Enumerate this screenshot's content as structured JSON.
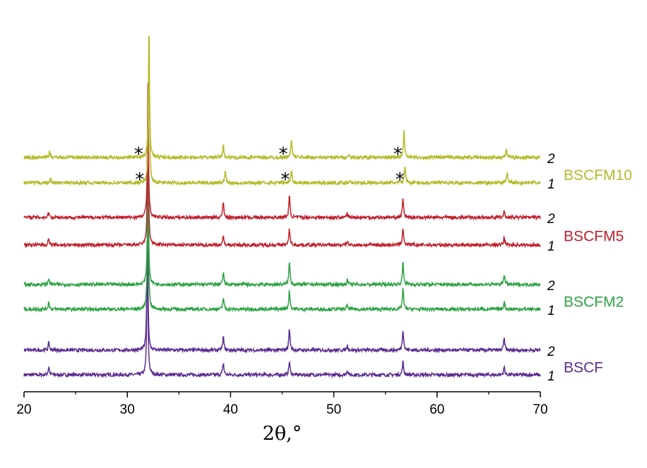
{
  "chart_data": {
    "type": "line",
    "title": "",
    "xlabel": "2θ,°",
    "ylabel": "",
    "xlim": [
      20,
      70
    ],
    "xticks": [
      20,
      30,
      40,
      50,
      60,
      70
    ],
    "xtick_labels": [
      "20",
      "30",
      "40",
      "50",
      "60",
      "70"
    ],
    "yaxis_visible": false,
    "grid": false,
    "samples": [
      {
        "name": "BSCF",
        "color": "#5b2d91",
        "curves": [
          {
            "label": "1",
            "peaks": [
              [
                22.4,
                0.6
              ],
              [
                31.95,
                10
              ],
              [
                39.3,
                0.9
              ],
              [
                45.7,
                1.0
              ],
              [
                51.3,
                0.35
              ],
              [
                56.7,
                1.0
              ],
              [
                66.5,
                0.6
              ]
            ]
          },
          {
            "label": "2",
            "peaks": [
              [
                22.4,
                0.55
              ],
              [
                31.95,
                10
              ],
              [
                39.3,
                1.0
              ],
              [
                45.7,
                1.6
              ],
              [
                51.3,
                0.35
              ],
              [
                56.7,
                1.6
              ],
              [
                66.5,
                0.9
              ]
            ]
          }
        ]
      },
      {
        "name": "BSCFM2",
        "color": "#2ca243",
        "curves": [
          {
            "label": "1",
            "peaks": [
              [
                22.4,
                0.55
              ],
              [
                32.0,
                10
              ],
              [
                39.3,
                0.85
              ],
              [
                45.7,
                1.4
              ],
              [
                51.3,
                0.3
              ],
              [
                56.7,
                1.6
              ],
              [
                66.5,
                0.55
              ]
            ]
          },
          {
            "label": "2",
            "peaks": [
              [
                22.4,
                0.45
              ],
              [
                32.0,
                10
              ],
              [
                39.3,
                0.9
              ],
              [
                45.7,
                1.7
              ],
              [
                51.3,
                0.35
              ],
              [
                56.7,
                1.7
              ],
              [
                66.5,
                0.8
              ]
            ]
          }
        ]
      },
      {
        "name": "BSCFM5",
        "color": "#c0202b",
        "curves": [
          {
            "label": "1",
            "peaks": [
              [
                22.4,
                0.5
              ],
              [
                32.0,
                10
              ],
              [
                39.3,
                0.6
              ],
              [
                45.7,
                1.2
              ],
              [
                51.3,
                0.25
              ],
              [
                56.7,
                1.3
              ],
              [
                66.5,
                0.6
              ]
            ]
          },
          {
            "label": "2",
            "peaks": [
              [
                22.4,
                0.4
              ],
              [
                32.0,
                10
              ],
              [
                39.3,
                1.2
              ],
              [
                45.7,
                1.6
              ],
              [
                51.3,
                0.3
              ],
              [
                56.7,
                1.4
              ],
              [
                66.5,
                0.45
              ]
            ]
          }
        ]
      },
      {
        "name": "BSCFM10",
        "color": "#b4bb2a",
        "curves": [
          {
            "label": "1",
            "peaks": [
              [
                22.6,
                0.3
              ],
              [
                32.1,
                10
              ],
              [
                39.5,
                0.9
              ],
              [
                45.9,
                1.0
              ],
              [
                51.6,
                0.2
              ],
              [
                56.9,
                1.3
              ],
              [
                66.8,
                0.75
              ]
            ]
          },
          {
            "label": "2",
            "peaks": [
              [
                22.5,
                0.45
              ],
              [
                32.1,
                10
              ],
              [
                39.3,
                0.95
              ],
              [
                45.9,
                1.4
              ],
              [
                51.5,
                0.2
              ],
              [
                56.8,
                2.0
              ],
              [
                66.7,
                0.6
              ]
            ]
          }
        ]
      }
    ],
    "annotations": [
      {
        "text": "*",
        "x": 31.1,
        "curve": "BSCFM10-2"
      },
      {
        "text": "*",
        "x": 45.1,
        "curve": "BSCFM10-2"
      },
      {
        "text": "*",
        "x": 56.2,
        "curve": "BSCFM10-2"
      },
      {
        "text": "*",
        "x": 31.2,
        "curve": "BSCFM10-1"
      },
      {
        "text": "*",
        "x": 45.3,
        "curve": "BSCFM10-1"
      },
      {
        "text": "*",
        "x": 56.4,
        "curve": "BSCFM10-1"
      }
    ]
  }
}
